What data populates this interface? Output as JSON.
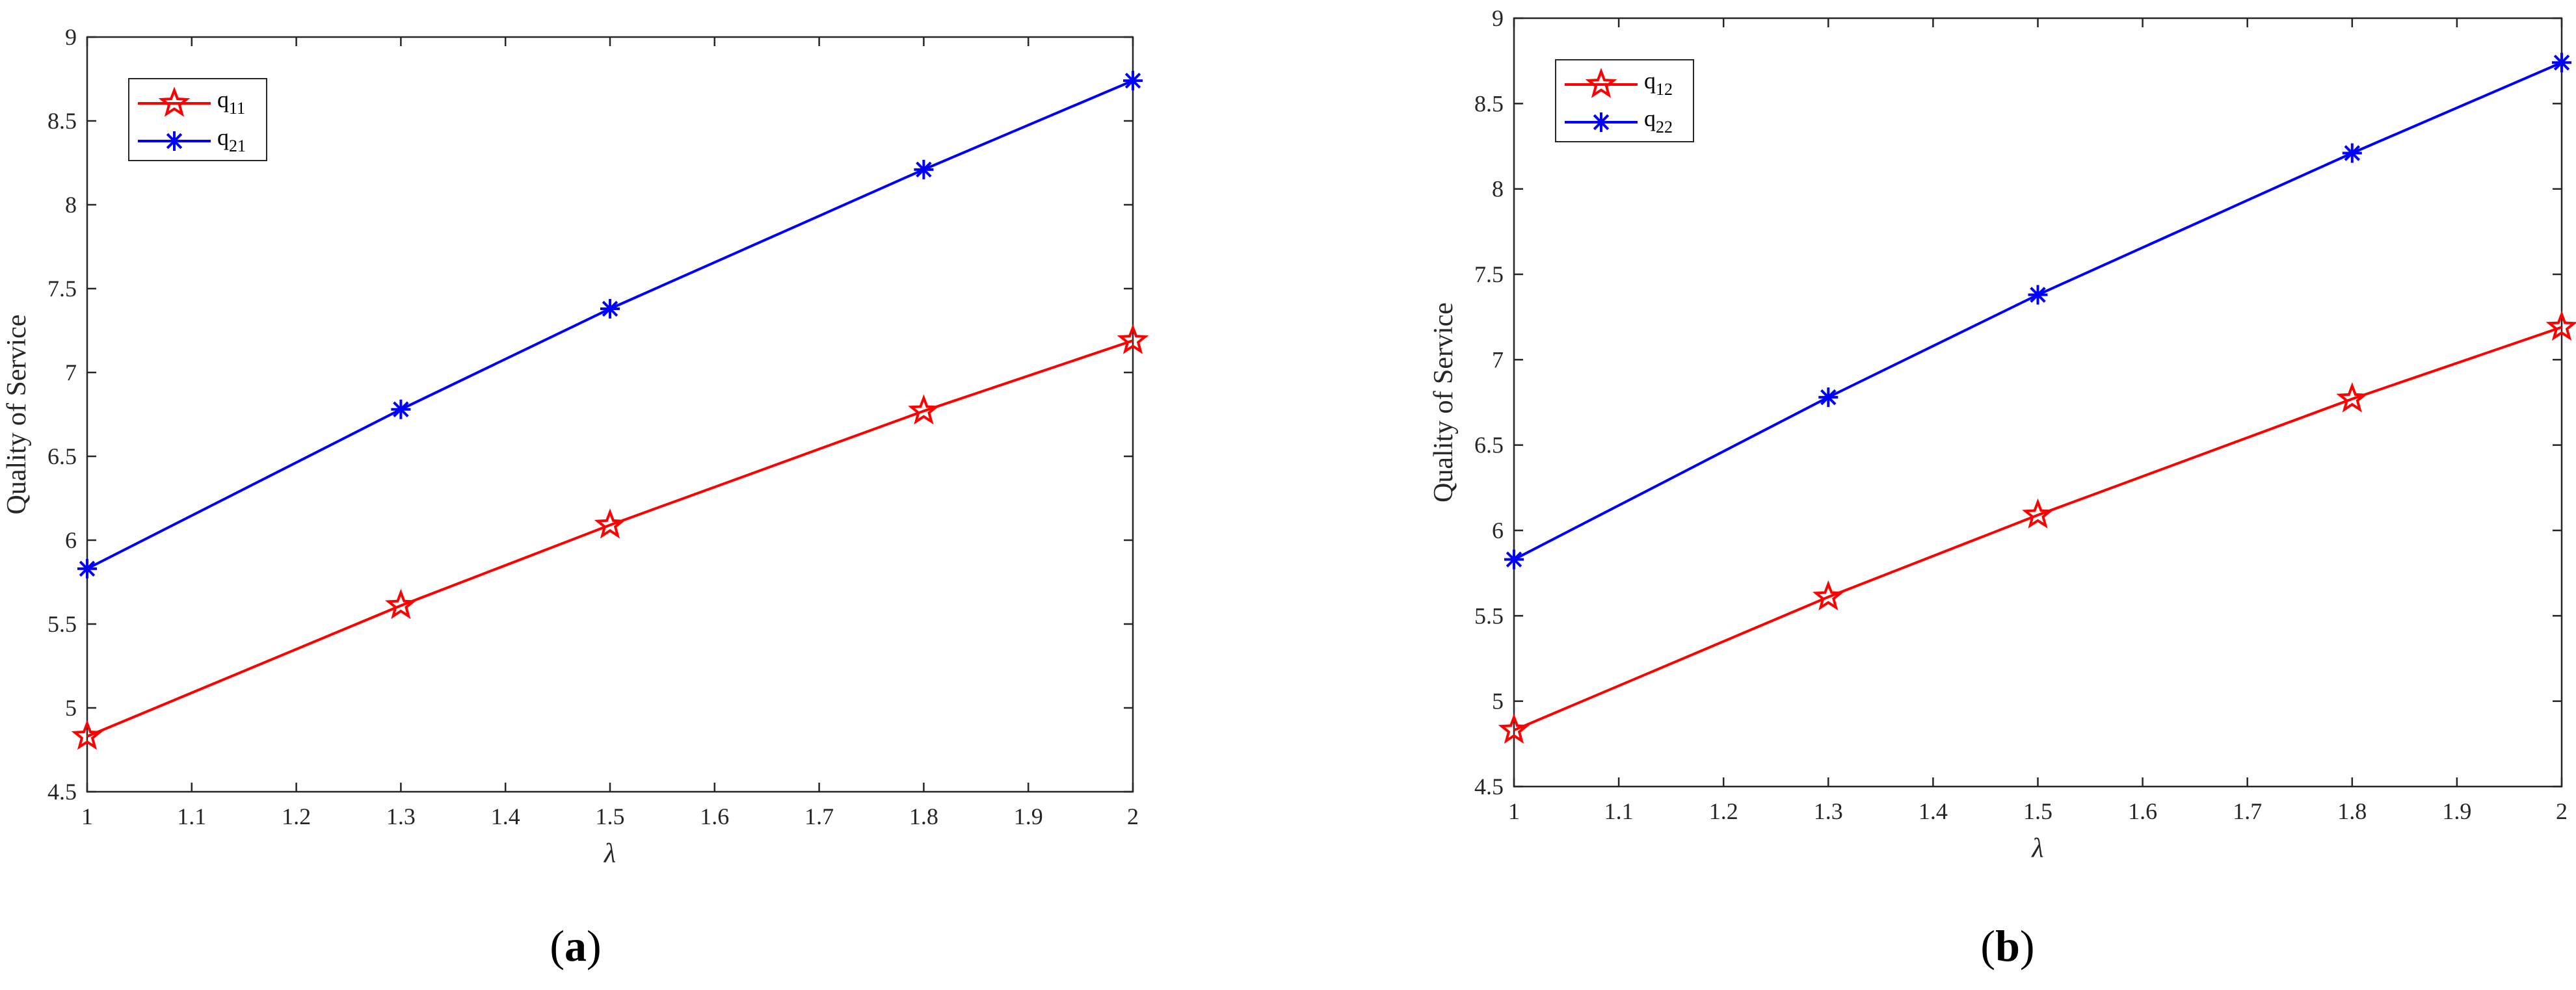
{
  "colors": {
    "q1": "#ff0000",
    "q2": "#0000ff",
    "axis": "#262626"
  },
  "chart_data": [
    {
      "type": "line",
      "panel_label": "a",
      "xlabel": "λ",
      "ylabel": "Quality of Service",
      "xlim": [
        1,
        2
      ],
      "ylim": [
        4.5,
        9
      ],
      "xticks": [
        "1",
        "1.1",
        "1.2",
        "1.3",
        "1.4",
        "1.5",
        "1.6",
        "1.7",
        "1.8",
        "1.9",
        "2"
      ],
      "yticks": [
        "4.5",
        "5",
        "5.5",
        "6",
        "6.5",
        "7",
        "7.5",
        "8",
        "8.5",
        "9"
      ],
      "grid": false,
      "legend_position": "top-left",
      "series": [
        {
          "name": "q",
          "subscript": "11",
          "color": "#ff0000",
          "marker": "pentagram",
          "x": [
            1,
            1.3,
            1.5,
            1.8,
            2
          ],
          "y": [
            4.83,
            5.61,
            6.09,
            6.77,
            7.19
          ]
        },
        {
          "name": "q",
          "subscript": "21",
          "color": "#0000ff",
          "marker": "asterisk",
          "x": [
            1,
            1.3,
            1.5,
            1.8,
            2
          ],
          "y": [
            5.83,
            6.78,
            7.38,
            8.21,
            8.74
          ]
        }
      ]
    },
    {
      "type": "line",
      "panel_label": "b",
      "xlabel": "λ",
      "ylabel": "Quality of Service",
      "xlim": [
        1,
        2
      ],
      "ylim": [
        4.5,
        9
      ],
      "xticks": [
        "1",
        "1.1",
        "1.2",
        "1.3",
        "1.4",
        "1.5",
        "1.6",
        "1.7",
        "1.8",
        "1.9",
        "2"
      ],
      "yticks": [
        "4.5",
        "5",
        "5.5",
        "6",
        "6.5",
        "7",
        "7.5",
        "8",
        "8.5",
        "9"
      ],
      "grid": false,
      "legend_position": "top-left",
      "series": [
        {
          "name": "q",
          "subscript": "12",
          "color": "#ff0000",
          "marker": "pentagram",
          "x": [
            1,
            1.3,
            1.5,
            1.8,
            2
          ],
          "y": [
            4.83,
            5.61,
            6.09,
            6.77,
            7.19
          ]
        },
        {
          "name": "q",
          "subscript": "22",
          "color": "#0000ff",
          "marker": "asterisk",
          "x": [
            1,
            1.3,
            1.5,
            1.8,
            2
          ],
          "y": [
            5.83,
            6.78,
            7.38,
            8.21,
            8.74
          ]
        }
      ]
    }
  ]
}
